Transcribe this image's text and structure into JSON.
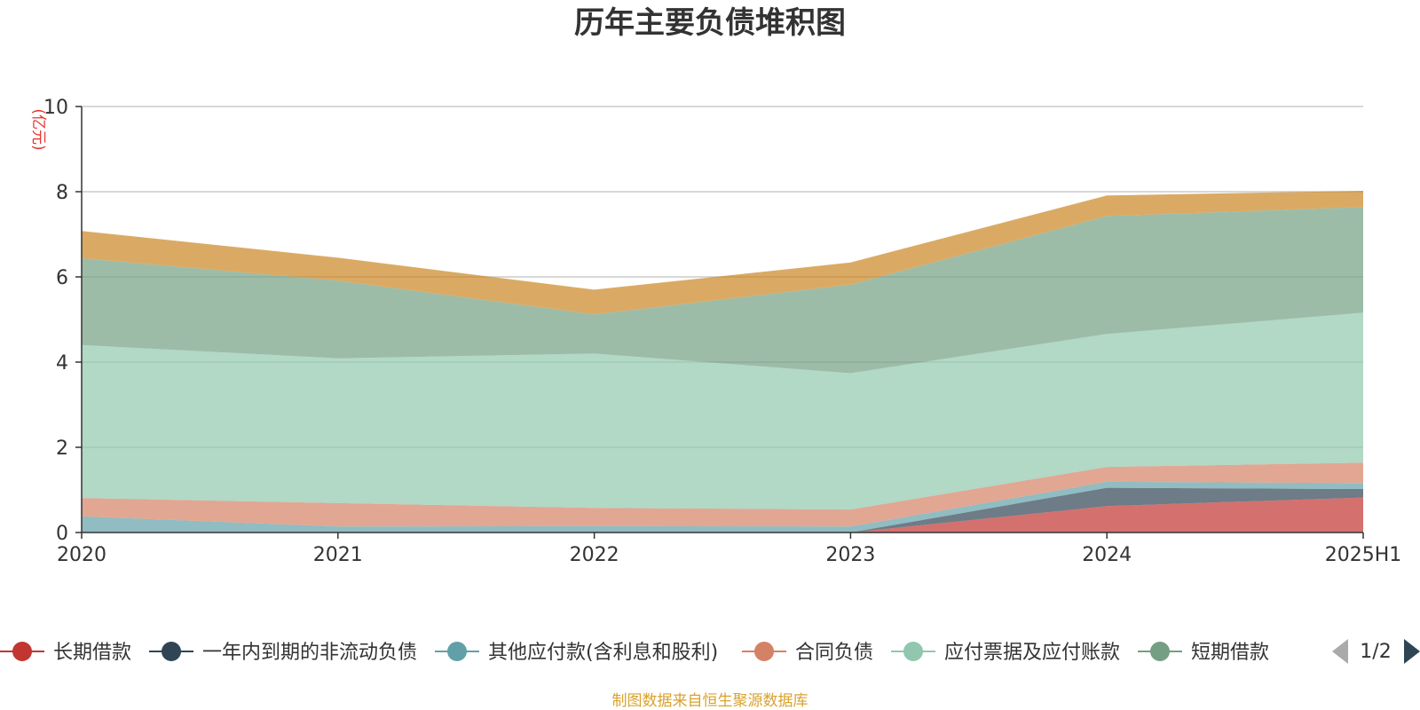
{
  "chart_data": {
    "type": "area",
    "title": "历年主要负债堆积图",
    "ylabel": "(亿元)",
    "ylim": [
      0,
      10
    ],
    "yticks": [
      0,
      2,
      4,
      6,
      8,
      10
    ],
    "categories": [
      "2020",
      "2021",
      "2022",
      "2023",
      "2024",
      "2025H1"
    ],
    "stacked": true,
    "grid": true,
    "series": [
      {
        "name": "长期借款",
        "color": "#c23531",
        "values": [
          0,
          0,
          0,
          0,
          0.62,
          0.82
        ]
      },
      {
        "name": "一年内到期的非流动负债",
        "color": "#2f4554",
        "values": [
          0,
          0,
          0,
          0,
          0.43,
          0.2
        ]
      },
      {
        "name": "其他应付款(含利息和股利)",
        "color": "#61a0a8",
        "values": [
          0.38,
          0.14,
          0.15,
          0.14,
          0.14,
          0.14
        ]
      },
      {
        "name": "合同负债",
        "color": "#d48265",
        "values": [
          0.43,
          0.55,
          0.43,
          0.4,
          0.35,
          0.48
        ]
      },
      {
        "name": "应付票据及应付账款",
        "color": "#91c7ae",
        "values": [
          3.59,
          3.4,
          3.62,
          3.2,
          3.12,
          3.52
        ]
      },
      {
        "name": "短期借款",
        "color": "#749f83",
        "values": [
          2.04,
          1.82,
          0.92,
          2.08,
          2.77,
          2.48
        ]
      },
      {
        "name": "",
        "color": "#ca8622",
        "values": [
          0.64,
          0.54,
          0.58,
          0.52,
          0.48,
          0.38
        ]
      }
    ],
    "legend_visible_count": 6,
    "legend_position": "bottom",
    "legend_page": "1/2"
  },
  "source_note": "制图数据来自恒生聚源数据库"
}
